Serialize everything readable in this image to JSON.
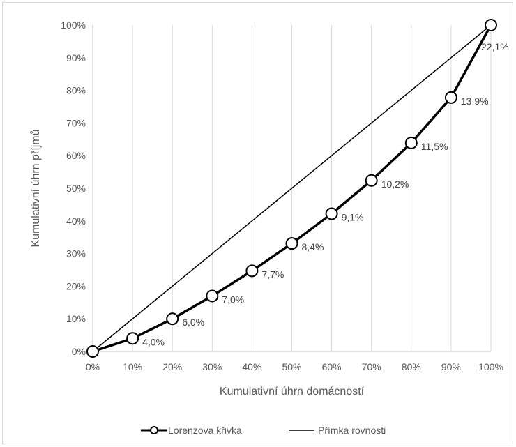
{
  "chart_data": {
    "type": "line",
    "xlabel": "Kumulativní úhrn domácností",
    "ylabel": "Kumulativní úhrn příjmů",
    "xlim": [
      0,
      100
    ],
    "ylim": [
      0,
      100
    ],
    "x_ticks": [
      "0%",
      "10%",
      "20%",
      "30%",
      "40%",
      "50%",
      "60%",
      "70%",
      "80%",
      "90%",
      "100%"
    ],
    "y_ticks": [
      "0%",
      "10%",
      "20%",
      "30%",
      "40%",
      "50%",
      "60%",
      "70%",
      "80%",
      "90%",
      "100%"
    ],
    "grid": "vertical",
    "legend_position": "bottom",
    "colors": {
      "series": "#000000",
      "grid": "#d9d9d9",
      "axis": "#bfbfbf",
      "text": "#595959"
    },
    "series": [
      {
        "name": "Lorenzova křivka",
        "style": "line-with-circle-markers",
        "x": [
          0,
          10,
          20,
          30,
          40,
          50,
          60,
          70,
          80,
          90,
          100
        ],
        "y": [
          0,
          4.0,
          10.0,
          17.0,
          24.7,
          33.1,
          42.2,
          52.4,
          63.9,
          77.8,
          100.0
        ],
        "data_labels": [
          "",
          "4,0%",
          "6,0%",
          "7,0%",
          "7,7%",
          "8,4%",
          "9,1%",
          "10,2%",
          "11,5%",
          "13,9%",
          "22,1%"
        ]
      },
      {
        "name": "Přímka rovnosti",
        "style": "thin-line",
        "x": [
          0,
          100
        ],
        "y": [
          0,
          100
        ]
      }
    ]
  }
}
